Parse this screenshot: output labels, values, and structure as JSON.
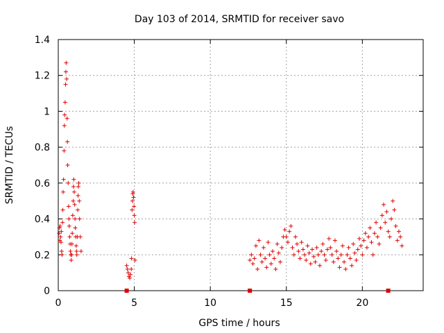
{
  "chart_data": {
    "type": "scatter",
    "title": "Day 103 of 2014, SRMTID for receiver savo",
    "xlabel": "GPS time / hours",
    "ylabel": "SRMTID / TECUs",
    "xlim": [
      0,
      24
    ],
    "ylim": [
      0,
      1.4
    ],
    "grid": true,
    "x_ticks": [
      0,
      5,
      10,
      15,
      20
    ],
    "x_tick_labels": [
      "0",
      "5",
      "10",
      "15",
      "20"
    ],
    "y_ticks": [
      0,
      0.2,
      0.4,
      0.6,
      0.8,
      1.0,
      1.2,
      1.4
    ],
    "y_tick_labels": [
      "0",
      "0.2",
      "0.4",
      "0.6",
      "0.8",
      "1",
      "1.2",
      "1.4"
    ],
    "marker": "+",
    "color": "#e00000",
    "series": [
      {
        "name": "SRMTID",
        "x": [
          0.05,
          0.08,
          0.1,
          0.12,
          0.15,
          0.18,
          0.2,
          0.22,
          0.25,
          0.28,
          0.3,
          0.32,
          0.35,
          0.38,
          0.4,
          0.42,
          0.45,
          0.48,
          0.5,
          0.52,
          0.55,
          0.58,
          0.6,
          0.62,
          0.65,
          0.68,
          0.7,
          0.72,
          0.75,
          0.78,
          0.8,
          0.82,
          0.85,
          0.88,
          0.9,
          0.92,
          0.95,
          0.98,
          1.0,
          1.02,
          1.05,
          1.08,
          1.1,
          1.12,
          1.15,
          1.18,
          1.2,
          1.22,
          1.25,
          1.28,
          1.3,
          1.32,
          1.35,
          1.38,
          1.4,
          1.45,
          1.5,
          4.5,
          4.55,
          4.6,
          4.65,
          4.7,
          4.75,
          4.8,
          4.82,
          4.85,
          4.88,
          4.9,
          4.92,
          4.95,
          4.98,
          5.0,
          5.02,
          5.05,
          12.6,
          12.7,
          12.8,
          12.9,
          13.0,
          13.1,
          13.2,
          13.3,
          13.4,
          13.5,
          13.6,
          13.7,
          13.8,
          13.9,
          14.0,
          14.1,
          14.2,
          14.3,
          14.4,
          14.5,
          14.6,
          14.7,
          14.8,
          14.9,
          15.0,
          15.1,
          15.2,
          15.3,
          15.4,
          15.5,
          15.6,
          15.7,
          15.8,
          15.9,
          16.0,
          16.1,
          16.2,
          16.3,
          16.4,
          16.5,
          16.6,
          16.7,
          16.8,
          16.9,
          17.0,
          17.1,
          17.2,
          17.3,
          17.4,
          17.5,
          17.6,
          17.7,
          17.8,
          17.9,
          18.0,
          18.1,
          18.2,
          18.3,
          18.4,
          18.5,
          18.6,
          18.7,
          18.8,
          18.9,
          19.0,
          19.1,
          19.2,
          19.3,
          19.4,
          19.5,
          19.6,
          19.7,
          19.8,
          19.9,
          20.0,
          20.1,
          20.2,
          20.3,
          20.4,
          20.5,
          20.6,
          20.7,
          20.8,
          20.9,
          21.0,
          21.1,
          21.2,
          21.3,
          21.4,
          21.5,
          21.6,
          21.7,
          21.8,
          21.9,
          22.0,
          22.1,
          22.2,
          22.3,
          22.4,
          22.5,
          22.6
        ],
        "y": [
          0.32,
          0.35,
          0.28,
          0.36,
          0.3,
          0.27,
          0.33,
          0.22,
          0.2,
          0.38,
          0.45,
          0.55,
          0.62,
          0.78,
          0.92,
          0.98,
          1.05,
          1.15,
          1.22,
          1.27,
          1.18,
          0.96,
          0.83,
          0.7,
          0.6,
          0.47,
          0.4,
          0.36,
          0.3,
          0.26,
          0.22,
          0.2,
          0.17,
          0.2,
          0.26,
          0.32,
          0.42,
          0.5,
          0.58,
          0.62,
          0.55,
          0.48,
          0.4,
          0.35,
          0.3,
          0.25,
          0.22,
          0.2,
          0.3,
          0.45,
          0.53,
          0.58,
          0.6,
          0.5,
          0.4,
          0.3,
          0.22,
          0.14,
          0.12,
          0.1,
          0.08,
          0.07,
          0.09,
          0.12,
          0.18,
          0.45,
          0.5,
          0.54,
          0.55,
          0.52,
          0.47,
          0.42,
          0.38,
          0.17,
          0.17,
          0.2,
          0.15,
          0.18,
          0.25,
          0.12,
          0.28,
          0.2,
          0.16,
          0.24,
          0.18,
          0.13,
          0.27,
          0.2,
          0.15,
          0.22,
          0.18,
          0.12,
          0.26,
          0.21,
          0.16,
          0.24,
          0.3,
          0.34,
          0.3,
          0.27,
          0.33,
          0.36,
          0.24,
          0.2,
          0.3,
          0.26,
          0.22,
          0.18,
          0.27,
          0.23,
          0.2,
          0.17,
          0.25,
          0.21,
          0.15,
          0.23,
          0.19,
          0.16,
          0.24,
          0.2,
          0.14,
          0.22,
          0.26,
          0.2,
          0.17,
          0.23,
          0.29,
          0.24,
          0.2,
          0.16,
          0.28,
          0.22,
          0.18,
          0.13,
          0.2,
          0.25,
          0.16,
          0.12,
          0.2,
          0.24,
          0.18,
          0.14,
          0.26,
          0.21,
          0.17,
          0.23,
          0.29,
          0.25,
          0.2,
          0.28,
          0.32,
          0.24,
          0.3,
          0.35,
          0.27,
          0.2,
          0.32,
          0.38,
          0.3,
          0.26,
          0.35,
          0.42,
          0.48,
          0.38,
          0.44,
          0.33,
          0.3,
          0.4,
          0.5,
          0.45,
          0.36,
          0.28,
          0.33,
          0.3,
          0.25
        ]
      }
    ],
    "zero_markers_x": [
      4.5,
      12.6,
      21.7
    ]
  }
}
